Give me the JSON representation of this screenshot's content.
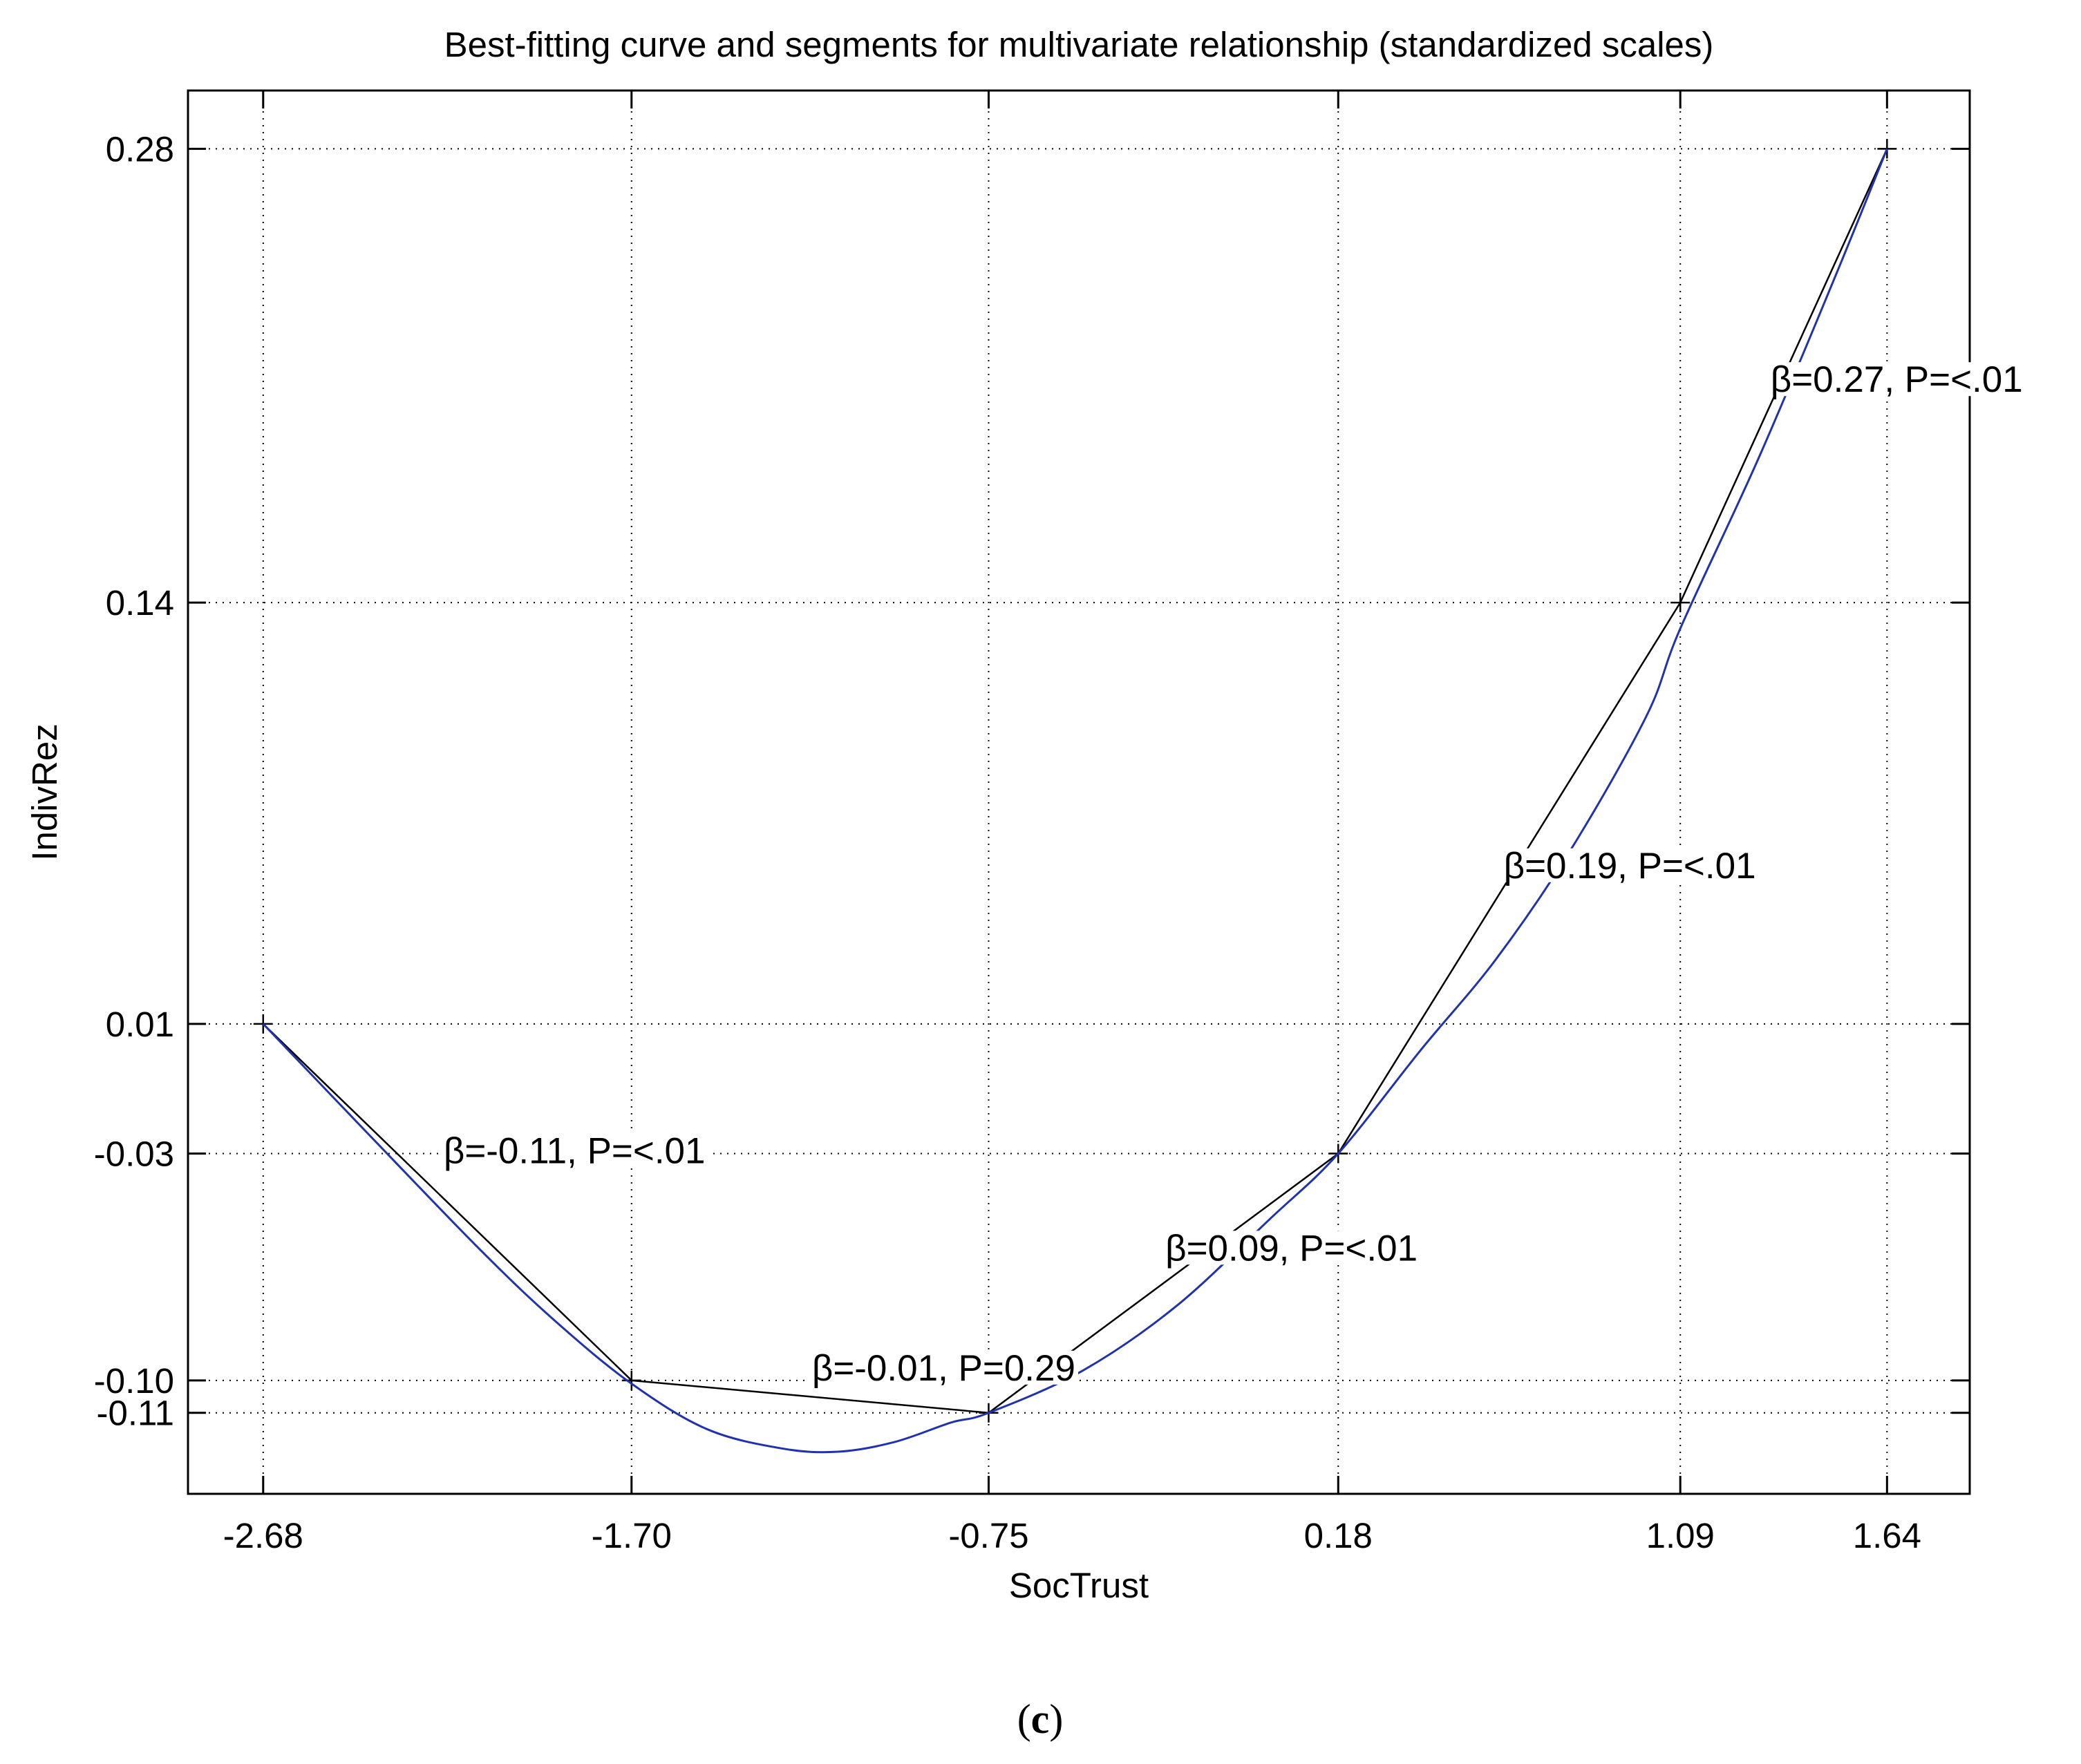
{
  "chart_data": {
    "type": "line",
    "title": "Best-fitting curve and segments for multivariate relationship (standardized scales)",
    "xlabel": "SocTrust",
    "ylabel": "IndivRez",
    "xlim": [
      -2.88,
      1.86
    ],
    "ylim": [
      -0.135,
      0.298
    ],
    "x_ticks": [
      -2.68,
      -1.7,
      -0.75,
      0.18,
      1.09,
      1.64
    ],
    "x_tick_labels": [
      "-2.68",
      "-1.70",
      "-0.75",
      "0.18",
      "1.09",
      "1.64"
    ],
    "y_ticks": [
      -0.11,
      -0.1,
      -0.03,
      0.01,
      0.14,
      0.28
    ],
    "y_tick_labels": [
      "-0.11",
      "-0.10",
      "-0.03",
      "0.01",
      "0.14",
      "0.28"
    ],
    "grid": true,
    "series": [
      {
        "style": "segments",
        "color": "#000000",
        "x": [
          -2.68,
          -1.7,
          -0.75,
          0.18,
          1.09,
          1.64
        ],
        "y": [
          0.01,
          -0.1,
          -0.11,
          -0.03,
          0.14,
          0.28
        ]
      },
      {
        "style": "curve",
        "color": "#2233aa",
        "x": [
          -2.68,
          -2.4,
          -2.1,
          -1.9,
          -1.7,
          -1.5,
          -1.3,
          -1.15,
          -1.0,
          -0.85,
          -0.75,
          -0.5,
          -0.25,
          0.0,
          0.18,
          0.4,
          0.6,
          0.8,
          1.0,
          1.09,
          1.3,
          1.5,
          1.64
        ],
        "y": [
          0.01,
          -0.024,
          -0.06,
          -0.082,
          -0.101,
          -0.115,
          -0.121,
          -0.122,
          -0.119,
          -0.113,
          -0.11,
          -0.097,
          -0.077,
          -0.05,
          -0.03,
          0.002,
          0.03,
          0.064,
          0.105,
          0.132,
          0.185,
          0.24,
          0.28
        ]
      }
    ],
    "segment_markers": [
      "+",
      "+",
      "+",
      "+",
      "+",
      "+"
    ],
    "annotations": [
      {
        "text": "β=-0.11, P=<.01",
        "x": -2.2,
        "y": -0.033
      },
      {
        "text": "β=-0.01, P=0.29",
        "x": -1.22,
        "y": -0.1
      },
      {
        "text": "β=0.09, P=<.01",
        "x": -0.28,
        "y": -0.063
      },
      {
        "text": "β=0.19, P=<.01",
        "x": 0.62,
        "y": 0.055
      },
      {
        "text": "β=0.27, P=<.01",
        "x": 1.33,
        "y": 0.205
      }
    ]
  },
  "caption": {
    "open": "(",
    "letter": "c",
    "close": ")"
  }
}
